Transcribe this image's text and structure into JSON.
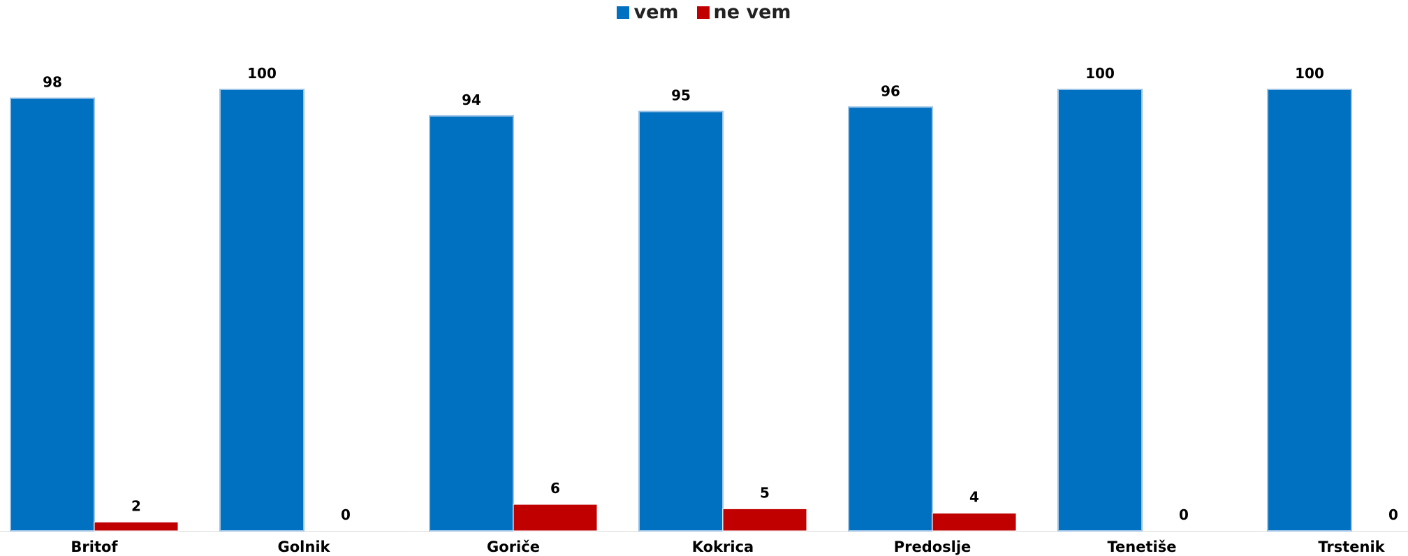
{
  "chart_data": {
    "type": "bar",
    "categories": [
      "Britof",
      "Golnik",
      "Goriče",
      "Kokrica",
      "Predoslje",
      "Tenetiše",
      "Trstenik"
    ],
    "series": [
      {
        "name": "vem",
        "values": [
          98,
          100,
          94,
          95,
          96,
          100,
          100
        ],
        "color": "#0070C0",
        "edge_color": "#9DC3E6"
      },
      {
        "name": "ne vem",
        "values": [
          2,
          0,
          6,
          5,
          4,
          0,
          0
        ],
        "color": "#C00000",
        "edge_color": "#FFFFFF"
      }
    ],
    "ylim": [
      0,
      100
    ],
    "title": "",
    "xlabel": "",
    "ylabel": "",
    "grid": false,
    "legend_position": "top-center",
    "data_labels": true
  }
}
